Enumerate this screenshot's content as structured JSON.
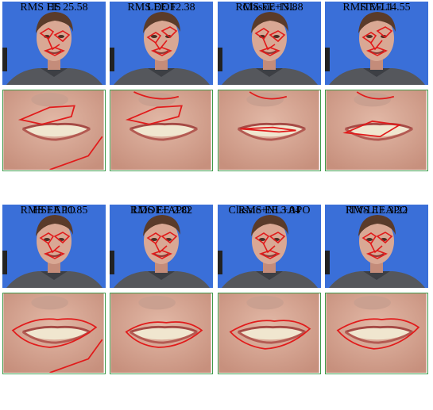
{
  "rows": [
    {
      "cells": [
        {
          "method": "HS",
          "rms": "RMS EE 25.58"
        },
        {
          "method": "LDOF",
          "rms": "RMS EE 12.38"
        },
        {
          "method": "Classic+NL",
          "rms": "RMS EE 13.88"
        },
        {
          "method": "ITV-L1",
          "rms": "RMS EE 14.55"
        }
      ]
    },
    {
      "cells": [
        {
          "method": "HS+APO",
          "rms": "RMS EE 11.85"
        },
        {
          "method": "LDOF+APO",
          "rms": "RMS EE 2.82"
        },
        {
          "method": "Classic+NL+APO",
          "rms": "RMS EE 3.04"
        },
        {
          "method": "ITV-L1+APO",
          "rms": "RMS EE 3.22"
        }
      ]
    }
  ],
  "colors": {
    "background_blue": "#3a6fd8",
    "contour_red": "#e11b1b",
    "mouth_frame_green": "#3f9a4a",
    "skin": "#d9a894"
  }
}
